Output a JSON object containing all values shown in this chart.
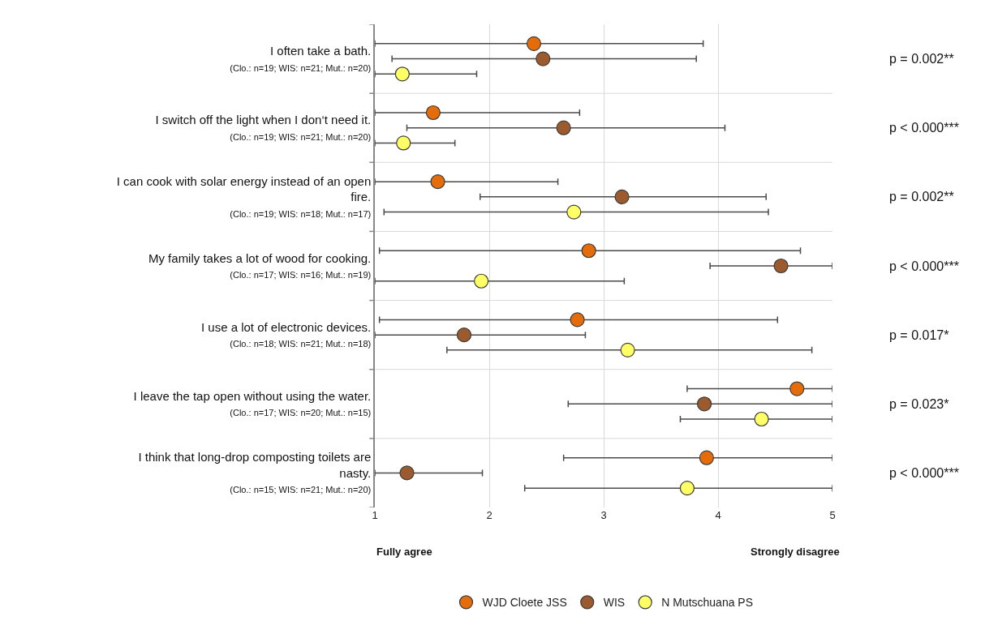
{
  "chart_data": {
    "type": "scatter",
    "orientation": "horizontal",
    "categories": [
      "I often take a bath.\n(Clo.: n=19; WIS: n=21; Mut.: n=20)",
      "I switch off the light when I don‘t need it.\n(Clo.: n=19; WIS: n=21; Mut.: n=20)",
      "I can cook with solar energy instead of an open fire.\n(Clo.: n=19; WIS: n=18; Mut.: n=17)",
      "My family takes a lot of wood for cooking.\n(Clo.: n=17; WIS: n=16; Mut.: n=19)",
      "I use a lot of electronic devices.\n(Clo.: n=18; WIS: n=21; Mut.: n=18)",
      "I leave the tap open without using the water.\n(Clo.: n=17; WIS: n=20; Mut.: n=15)",
      "I think that long-drop composting toilets are nasty.\n(Clo.: n=15; WIS: n=21; Mut.: n=20)"
    ],
    "series": [
      {
        "name": "WJD Cloete JSS",
        "color": "#e46c0a",
        "values": [
          2.39,
          1.51,
          1.55,
          2.87,
          2.77,
          4.69,
          3.9
        ],
        "errors": [
          [
            1.0,
            3.87
          ],
          [
            1.0,
            2.79
          ],
          [
            1.0,
            2.6
          ],
          [
            1.04,
            4.72
          ],
          [
            1.04,
            4.52
          ],
          [
            3.73,
            5.0
          ],
          [
            2.65,
            5.0
          ]
        ]
      },
      {
        "name": "WIS",
        "color": "#9c5b2e",
        "values": [
          2.47,
          2.65,
          3.16,
          4.55,
          1.78,
          3.88,
          1.28
        ],
        "errors": [
          [
            1.15,
            3.81
          ],
          [
            1.28,
            4.06
          ],
          [
            1.92,
            4.42
          ],
          [
            3.93,
            5.0
          ],
          [
            1.0,
            2.84
          ],
          [
            2.69,
            5.0
          ],
          [
            1.0,
            1.94
          ]
        ]
      },
      {
        "name": "N Mutschuana PS",
        "color": "#ffff66",
        "values": [
          1.24,
          1.25,
          2.74,
          1.93,
          3.21,
          4.38,
          3.73
        ],
        "errors": [
          [
            1.0,
            1.89
          ],
          [
            1.0,
            1.7
          ],
          [
            1.08,
            4.44
          ],
          [
            1.0,
            3.18
          ],
          [
            1.63,
            4.82
          ],
          [
            3.67,
            5.0
          ],
          [
            2.31,
            5.0
          ]
        ]
      }
    ],
    "xlim": [
      1,
      5
    ],
    "xticks": [
      1,
      2,
      3,
      4,
      5
    ],
    "grid": true,
    "legend": "bottom",
    "marker": "circle",
    "annotations": [
      "p = 0.002**",
      "p < 0.000***",
      "p = 0.002**",
      "p < 0.000***",
      "p = 0.017*",
      "p = 0.023*",
      "p < 0.000***",
      "Fully agree",
      "Strongly disagree"
    ]
  }
}
